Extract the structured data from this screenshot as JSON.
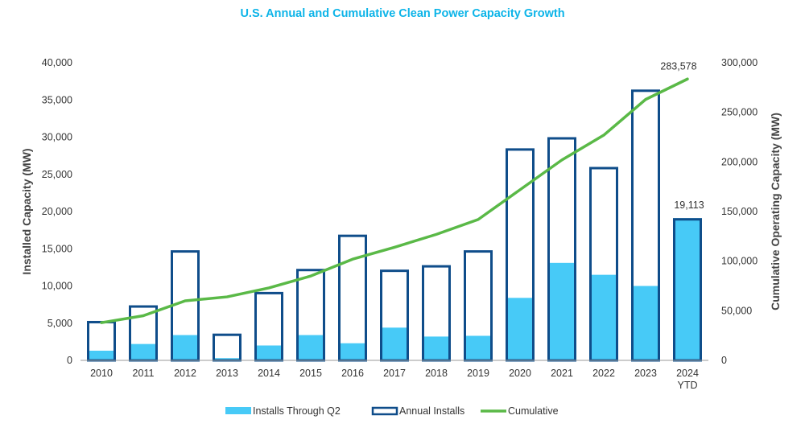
{
  "colors": {
    "title": "#0db4e8",
    "installs_q2": "#47caf7",
    "annual_outline": "#0f4d8a",
    "cumulative": "#5ab947",
    "axis_line": "#9a9a9a"
  },
  "chart_data": {
    "type": "bar",
    "title": "U.S. Annual and Cumulative Clean Power Capacity Growth",
    "xlabel": "",
    "ylabel": "Installed Capacity (MW)",
    "y2label": "Cumulative Operating Capacity (MW)",
    "categories": [
      "2010",
      "2011",
      "2012",
      "2013",
      "2014",
      "2015",
      "2016",
      "2017",
      "2018",
      "2019",
      "2020",
      "2021",
      "2022",
      "2023",
      "2024 YTD"
    ],
    "ylim": [
      0,
      40000
    ],
    "y2lim": [
      0,
      300000
    ],
    "yticks": [
      "0",
      "5,000",
      "10,000",
      "15,000",
      "20,000",
      "25,000",
      "30,000",
      "35,000",
      "40,000"
    ],
    "y2ticks": [
      "0",
      "50,000",
      "100,000",
      "150,000",
      "200,000",
      "250,000",
      "300,000"
    ],
    "series": [
      {
        "name": "Installs Through Q2",
        "kind": "bar-fill",
        "axis": "left",
        "values": [
          1300,
          2200,
          3400,
          300,
          2000,
          3400,
          2300,
          4400,
          3200,
          3300,
          8400,
          13100,
          11500,
          10000,
          19113
        ]
      },
      {
        "name": "Annual Installs",
        "kind": "bar-outline",
        "axis": "left",
        "values": [
          5300,
          7400,
          14800,
          3600,
          9200,
          12300,
          16900,
          12200,
          12800,
          14800,
          28500,
          30000,
          26000,
          36400,
          19113
        ]
      },
      {
        "name": "Cumulative",
        "kind": "line",
        "axis": "right",
        "values": [
          38000,
          45000,
          60000,
          64000,
          73000,
          85000,
          102000,
          114000,
          127000,
          142000,
          172000,
          202000,
          227000,
          263000,
          283578
        ]
      }
    ],
    "data_labels": [
      {
        "series": "Cumulative",
        "category": "2024 YTD",
        "text": "283,578"
      },
      {
        "series": "Installs Through Q2",
        "category": "2024 YTD",
        "text": "19,113"
      }
    ],
    "legend": {
      "position": "bottom",
      "entries": [
        "Installs Through Q2",
        "Annual Installs",
        "Cumulative"
      ]
    },
    "grid": false
  }
}
